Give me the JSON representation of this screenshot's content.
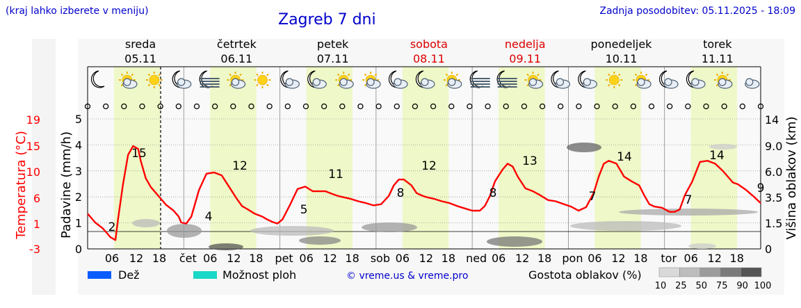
{
  "header": {
    "hint": "(kraj lahko izberete v meniju)",
    "title": "Zagreb 7 dni",
    "updated": "Zadnja posodobitev: 05.11.2025 - 18:09"
  },
  "days": [
    {
      "name": "sreda",
      "date": "05.11",
      "weekend": false
    },
    {
      "name": "četrtek",
      "date": "06.11",
      "weekend": false
    },
    {
      "name": "petek",
      "date": "07.11",
      "weekend": false
    },
    {
      "name": "sobota",
      "date": "08.11",
      "weekend": true
    },
    {
      "name": "nedelja",
      "date": "09.11",
      "weekend": true
    },
    {
      "name": "ponedeljek",
      "date": "10.11",
      "weekend": false
    },
    {
      "name": "torek",
      "date": "11.11",
      "weekend": false
    }
  ],
  "weather_icons": [
    "moon",
    "sun-cloud",
    "sun",
    "moon-cloud",
    "moon-fog",
    "sun-cloud",
    "sun",
    "moon-cloud",
    "moon-cloud",
    "sun-cloud",
    "sun-cloud",
    "moon-cloud",
    "moon-cloud",
    "sun-cloud",
    "moon-fog",
    "moon-fog",
    "sun-cloud",
    "moon-cloud",
    "moon-cloud",
    "sun",
    "sun-cloud",
    "moon-cloud",
    "moon-cloud",
    "sun-cloud",
    "cloud"
  ],
  "colors": {
    "temperature": "#ff0000",
    "day_band": "#eef8c8",
    "weekend_text": "#dd0000",
    "link": "#0000cc",
    "rain": "#0a5cff",
    "shower": "#18d8c8"
  },
  "chart_data": {
    "type": "line",
    "x_tick_labels": [
      "06",
      "12",
      "18",
      "čet",
      "06",
      "12",
      "18",
      "pet",
      "06",
      "12",
      "18",
      "sob",
      "06",
      "12",
      "18",
      "ned",
      "06",
      "12",
      "18",
      "pon",
      "06",
      "12",
      "18",
      "tor",
      "06",
      "12",
      "18"
    ],
    "left_axis_precip": {
      "label": "Padavine (mm/h)",
      "ticks": [
        "0",
        "1",
        "2",
        "3",
        "4",
        "5"
      ],
      "range": [
        0,
        5
      ]
    },
    "left_axis_temp": {
      "label": "Temperatura (°C)",
      "ticks": [
        "-3",
        "1",
        "6",
        "10",
        "15",
        "19"
      ]
    },
    "right_axis": {
      "label": "Višina oblakov (km)",
      "ticks": [
        "0",
        "1.5",
        "3.5",
        "6.0",
        "9.0",
        "14"
      ]
    },
    "temperature_series": {
      "hours": [
        0,
        3,
        6,
        9,
        11,
        12,
        14,
        16,
        18,
        20,
        21,
        23,
        25,
        28,
        31,
        34,
        36,
        37,
        39,
        41,
        44,
        47,
        50,
        53,
        56,
        59,
        61,
        63,
        66,
        69,
        71,
        73,
        75,
        77,
        80,
        83,
        86,
        89,
        92,
        94,
        97,
        99,
        101,
        104,
        107,
        110,
        113,
        116,
        119,
        121,
        123,
        125,
        128,
        130,
        132,
        134,
        137,
        140,
        143,
        146,
        149,
        152,
        155,
        157,
        159,
        161,
        164,
        166,
        168,
        170,
        173,
        176,
        179,
        182,
        185,
        187,
        189,
        191,
        194,
        197,
        200,
        202,
        204,
        206,
        209,
        212,
        215,
        218,
        220,
        222,
        224,
        227,
        230,
        232,
        234,
        236,
        239,
        242,
        245,
        248,
        251,
        253,
        255,
        257,
        260,
        263,
        266
      ],
      "temps": [
        3,
        1.5,
        0.5,
        -1,
        -1.5,
        2,
        8,
        13,
        14.5,
        14,
        12,
        9,
        7.5,
        6,
        4.5,
        3.5,
        2.5,
        1.5,
        1.3,
        2.5,
        7,
        9.8,
        10,
        9.5,
        7.5,
        5.5,
        4.3,
        3.8,
        3,
        2.5,
        2,
        1.6,
        1.3,
        2,
        4.5,
        7.2,
        7.6,
        6.8,
        6.8,
        6.8,
        6.3,
        6,
        5.8,
        5.5,
        5.1,
        4.8,
        4.4,
        4.6,
        6,
        7.8,
        8.8,
        8.8,
        7.8,
        6.5,
        6.1,
        5.8,
        5.5,
        5.1,
        4.8,
        4.3,
        3.9,
        3.5,
        3.5,
        4.3,
        6,
        8.5,
        10.5,
        11.5,
        11,
        9.3,
        7.3,
        6.8,
        6.1,
        5.3,
        5.1,
        4.8,
        4.5,
        4.2,
        3.5,
        4.1,
        6.5,
        9.3,
        11.5,
        12,
        11.5,
        9.3,
        8.5,
        7.8,
        6.1,
        4.6,
        4.2,
        4,
        3.3,
        3.3,
        3.7,
        6.1,
        8.5,
        11.8,
        12,
        11.5,
        10.3,
        9.3,
        8.3,
        8,
        7.1,
        6,
        4.8
      ]
    },
    "temperature_labels": [
      {
        "hour": 4,
        "value": "2"
      },
      {
        "hour": 13,
        "value": "15"
      },
      {
        "hour": 29,
        "value": "4"
      },
      {
        "hour": 38,
        "value": "12"
      },
      {
        "hour": 53,
        "value": "5"
      },
      {
        "hour": 62,
        "value": "11"
      },
      {
        "hour": 77,
        "value": "8"
      },
      {
        "hour": 86,
        "value": "12"
      },
      {
        "hour": 101,
        "value": "8"
      },
      {
        "hour": 110,
        "value": "13"
      },
      {
        "hour": 125,
        "value": "7"
      },
      {
        "hour": 134,
        "value": "14"
      },
      {
        "hour": 149,
        "value": "7"
      },
      {
        "hour": 158,
        "value": "14"
      },
      {
        "hour": 168,
        "value": "9"
      }
    ],
    "legend": {
      "rain_label": "Dež",
      "shower_label": "Možnost ploh",
      "credit": "© vreme.us & vreme.pro",
      "cloud_density_label": "Gostota oblakov (%)",
      "cloud_density_ticks": [
        "10",
        "25",
        "50",
        "75",
        "90",
        "100"
      ]
    },
    "grid": true
  }
}
